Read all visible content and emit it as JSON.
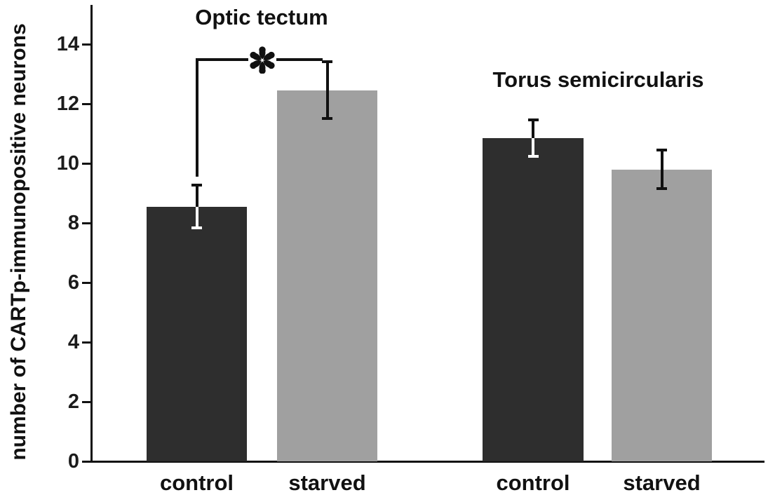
{
  "figure_title": "",
  "chart_data": {
    "type": "bar",
    "title": "",
    "xlabel": "",
    "ylabel": "number of CARTp-immunopositive neurons",
    "ylim": [
      0,
      15
    ],
    "yticks": [
      0,
      2,
      4,
      6,
      8,
      10,
      12,
      14
    ],
    "grid": false,
    "legend": "none",
    "colors": {
      "dark_bar": "#2e2e2e",
      "light_bar": "#a0a0a0",
      "axis": "#111111",
      "error_bar_on_dark": "#ffffff",
      "error_bar_on_light": "#111111"
    },
    "groups": [
      {
        "label": "Optic tectum",
        "bars": [
          {
            "category": "control",
            "value": 8.55,
            "error": 0.77,
            "color": "#2e2e2e"
          },
          {
            "category": "starved",
            "value": 12.45,
            "error": 1.0,
            "color": "#a0a0a0"
          }
        ]
      },
      {
        "label": "Torus semicircularis",
        "bars": [
          {
            "category": "control",
            "value": 10.85,
            "error": 0.65,
            "color": "#2e2e2e"
          },
          {
            "category": "starved",
            "value": 9.8,
            "error": 0.7,
            "color": "#a0a0a0"
          }
        ]
      }
    ],
    "significance": {
      "symbol": "*",
      "compares": [
        "Optic tectum control",
        "Optic tectum starved"
      ],
      "bracket_top_value": 13.48,
      "bracket_left_bottom_value": 9.55
    }
  }
}
